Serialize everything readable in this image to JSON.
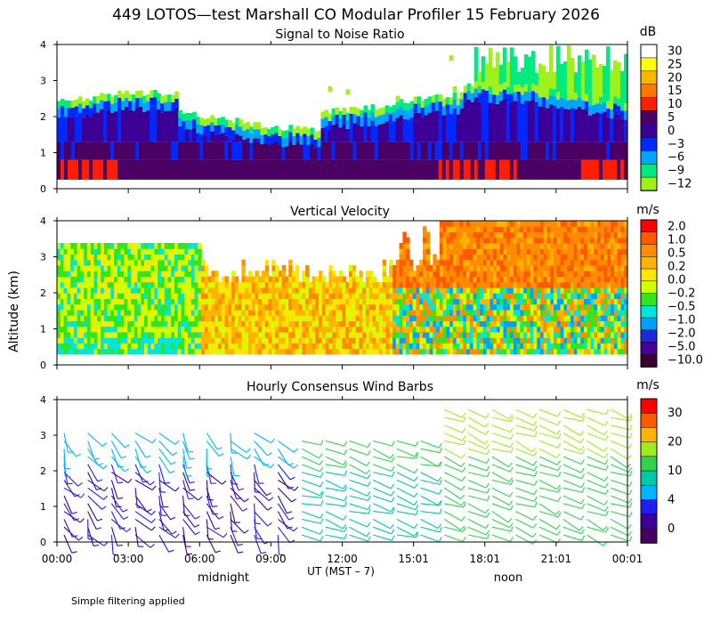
{
  "title": "449 LOTOS—test Marshall CO Modular Profiler 15 February 2026",
  "ylabel": "Altitude (km)",
  "xlabel": "UT  (MST – 7)",
  "x_ticks": [
    "00:00",
    "03:00",
    "06:00",
    "09:00",
    "12:00",
    "15:01",
    "18:01",
    "21:01",
    "00:01"
  ],
  "local_labels": [
    "midnight",
    "noon"
  ],
  "y_ticks": [
    "0",
    "1",
    "2",
    "3",
    "4"
  ],
  "footnote": "Simple filtering applied",
  "chart_data": [
    {
      "type": "heatmap",
      "title": "Signal to Noise Ratio",
      "xlabel": "UT (MST – 7)",
      "ylabel": "Altitude (km)",
      "xlim": [
        0,
        24
      ],
      "ylim": [
        0,
        4
      ],
      "colorbar_unit": "dB",
      "colorbar_ticks": [
        "30",
        "25",
        "20",
        "15",
        "10",
        "5",
        "0",
        "−3",
        "−6",
        "−9",
        "−12"
      ],
      "colorbar_colors": [
        "#ffffff",
        "#ffff00",
        "#ffb400",
        "#ff7800",
        "#ff1e00",
        "#4b0064",
        "#3c0096",
        "#0028ff",
        "#00a5ff",
        "#00eb7f",
        "#a0f01e"
      ],
      "summary": [
        {
          "layer": "0.3-1 km",
          "snr_db": "5 to 15 (red patches near 01:00-02:00 and 16:00-19:00)"
        },
        {
          "layer": "1-2 km",
          "snr_db": "0 to 5"
        },
        {
          "layer": "2-2.5 km",
          "snr_db": "-6 to -12"
        },
        {
          "layer": "above ~2.5 km",
          "snr_db": "sparse; -9 to -12 after 17:00 up to 4 km"
        }
      ]
    },
    {
      "type": "heatmap",
      "title": "Vertical Velocity",
      "xlabel": "UT (MST – 7)",
      "ylabel": "Altitude (km)",
      "xlim": [
        0,
        24
      ],
      "ylim": [
        0,
        4
      ],
      "colorbar_unit": "m/s",
      "colorbar_ticks": [
        "2.0",
        "1.0",
        "0.5",
        "0.2",
        "0.0",
        "−0.2",
        "−0.5",
        "−1.0",
        "−2.0",
        "−5.0",
        "−10.0"
      ],
      "colorbar_colors": [
        "#ff0000",
        "#ff5a00",
        "#ff8c00",
        "#ffb400",
        "#ffe600",
        "#d2ff00",
        "#32e61e",
        "#00e6dc",
        "#00a0ff",
        "#1e28dc",
        "#460096",
        "#3c0032"
      ],
      "summary": [
        {
          "period": "00:00-06:00",
          "w_ms": "-0.2 to 0.0, below ~3.3 km"
        },
        {
          "period": "06:00-14:00",
          "w_ms": "0.0 to 0.5, below ~2.5 km"
        },
        {
          "period": "16:00-24:00",
          "w_ms": "0.5 to 1.0 up to 4 km, mixed below 2 km"
        }
      ]
    },
    {
      "type": "wind_barbs",
      "title": "Hourly Consensus Wind Barbs",
      "xlabel": "UT (MST – 7)",
      "ylabel": "Altitude (km)",
      "xlim": [
        0,
        24
      ],
      "ylim": [
        0,
        4
      ],
      "colorbar_unit": "m/s",
      "colorbar_ticks": [
        "30",
        "20",
        "10",
        "4",
        "0"
      ],
      "colorbar_colors": [
        "#ff0000",
        "#ff5a00",
        "#ffb400",
        "#a0eb1e",
        "#32d250",
        "#00c8aa",
        "#00b4ff",
        "#1e1ef0",
        "#3c0096",
        "#460064"
      ],
      "summary": [
        {
          "period": "00:00-10:00",
          "speed_ms": "2 to 8 (blue/purple)"
        },
        {
          "period": "10:00-16:00",
          "speed_ms": "6 to 12 (cyan/green)"
        },
        {
          "period": "16:00-24:00",
          "speed_ms": "10 to 15 (green/light green), barbs up to 4 km"
        }
      ]
    }
  ]
}
